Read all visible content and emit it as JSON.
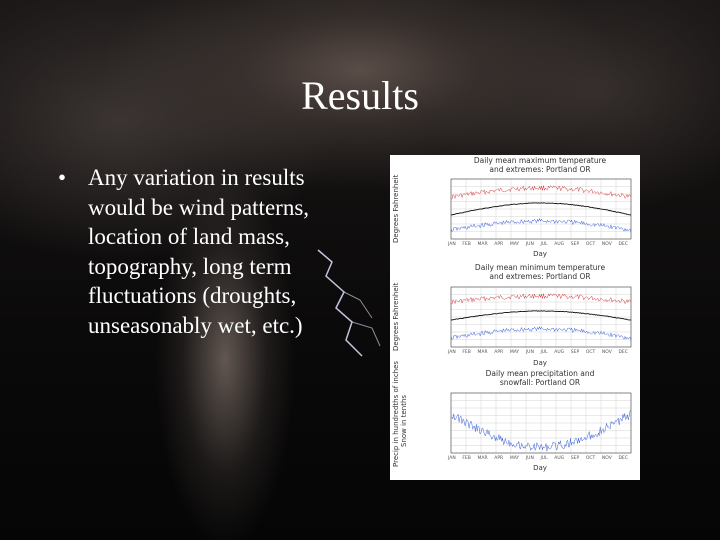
{
  "slide": {
    "title": "Results",
    "bullets": [
      "Any variation in results would be wind patterns, location of land mass, topography, long term fluctuations (droughts, unseasonably wet, etc.)"
    ],
    "background": "storm-tornado-lightning-photo"
  },
  "figure": {
    "panels": [
      {
        "title_line1": "Daily mean maximum temperature",
        "title_line2": "and extremes: Portland OR",
        "ylabel": "Degrees Fahrenheit",
        "xlabel": "Day"
      },
      {
        "title_line1": "Daily mean minimum temperature",
        "title_line2": "and extremes: Portland OR",
        "ylabel": "Degrees Fahrenheit",
        "xlabel": "Day"
      },
      {
        "title_line1": "Daily mean precipitation and",
        "title_line2": "snowfall: Portland OR",
        "ylabel": "Precip in hundredths of inches",
        "ylabel2": "Snow in tenths",
        "xlabel": "Day"
      }
    ],
    "months": [
      "JAN",
      "FEB",
      "MAR",
      "APR",
      "MAY",
      "JUN",
      "JUL",
      "AUG",
      "SEP",
      "OCT",
      "NOV",
      "DEC"
    ],
    "colors": {
      "high": "#d63b3b",
      "low": "#3a5fd6",
      "mean": "#111111",
      "grid": "#c9c9c9"
    }
  }
}
